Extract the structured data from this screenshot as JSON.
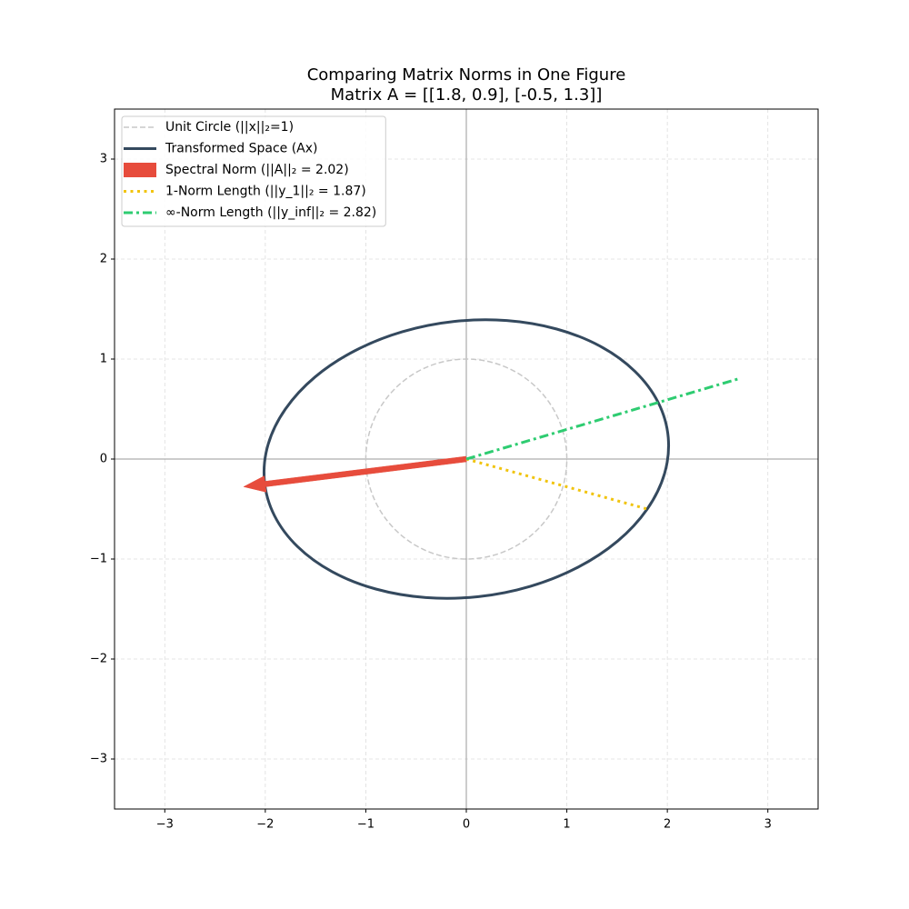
{
  "chart_data": {
    "type": "line",
    "title": "Comparing Matrix Norms in One Figure",
    "subtitle": "Matrix A = [[1.8, 0.9], [-0.5, 1.3]]",
    "xlim": [
      -3.5,
      3.5
    ],
    "ylim": [
      -3.5,
      3.5
    ],
    "xticks": [
      {
        "value": -3,
        "label": "−3"
      },
      {
        "value": -2,
        "label": "−2"
      },
      {
        "value": -1,
        "label": "−1"
      },
      0,
      1,
      2,
      3
    ],
    "yticks": [
      {
        "value": -3,
        "label": "−3"
      },
      {
        "value": -2,
        "label": "−2"
      },
      {
        "value": -1,
        "label": "−1"
      },
      0,
      1,
      2,
      3
    ],
    "grid": true,
    "legend": "upper left",
    "series": [
      {
        "name": "Unit Circle (||x||₂=1)",
        "color": "#c8c8c8",
        "style": "dashed",
        "x": [
          1,
          0.966,
          0.866,
          0.707,
          0.5,
          0.259,
          0,
          -0.259,
          -0.5,
          -0.707,
          -0.866,
          -0.966,
          -1,
          -0.966,
          -0.866,
          -0.707,
          -0.5,
          -0.259,
          0,
          0.259,
          0.5,
          0.707,
          0.866,
          0.966,
          1
        ],
        "y": [
          0,
          0.259,
          0.5,
          0.707,
          0.866,
          0.966,
          1,
          0.966,
          0.866,
          0.707,
          0.5,
          0.259,
          0,
          -0.259,
          -0.5,
          -0.707,
          -0.866,
          -0.966,
          -1,
          -0.966,
          -0.866,
          -0.707,
          -0.5,
          -0.259,
          0
        ]
      },
      {
        "name": "Transformed Space (Ax)",
        "color": "#34495e",
        "style": "solid",
        "x": [
          1.8,
          1.972,
          2.009,
          1.909,
          1.679,
          1.335,
          0.9,
          0.403,
          -0.121,
          -0.636,
          -1.109,
          -1.506,
          -1.8,
          -1.972,
          -2.009,
          -1.909,
          -1.679,
          -1.335,
          -0.9,
          -0.403,
          0.121,
          0.636,
          1.109,
          1.506,
          1.8
        ],
        "y": [
          -0.5,
          -0.146,
          0.217,
          0.566,
          0.876,
          1.127,
          1.3,
          1.385,
          1.376,
          1.273,
          1.083,
          0.82,
          0.5,
          0.146,
          -0.217,
          -0.566,
          -0.876,
          -1.127,
          -1.3,
          -1.385,
          -1.376,
          -1.273,
          -1.083,
          -0.82,
          -0.5
        ]
      },
      {
        "name": "Spectral Norm (||A||₂ = 2.02)",
        "color": "#e74c3c",
        "style": "arrow",
        "x": [
          0,
          -2.0
        ],
        "y": [
          0,
          -0.25
        ]
      },
      {
        "name": "1-Norm Length (||y_1||₂ = 1.87)",
        "color": "#f1c40f",
        "style": "dotted",
        "x": [
          0,
          1.8
        ],
        "y": [
          0,
          -0.5
        ]
      },
      {
        "name": "∞-Norm Length (||y_inf||₂ = 2.82)",
        "color": "#2ecc71",
        "style": "dashdot",
        "x": [
          0,
          2.7
        ],
        "y": [
          0,
          0.8
        ]
      }
    ]
  }
}
